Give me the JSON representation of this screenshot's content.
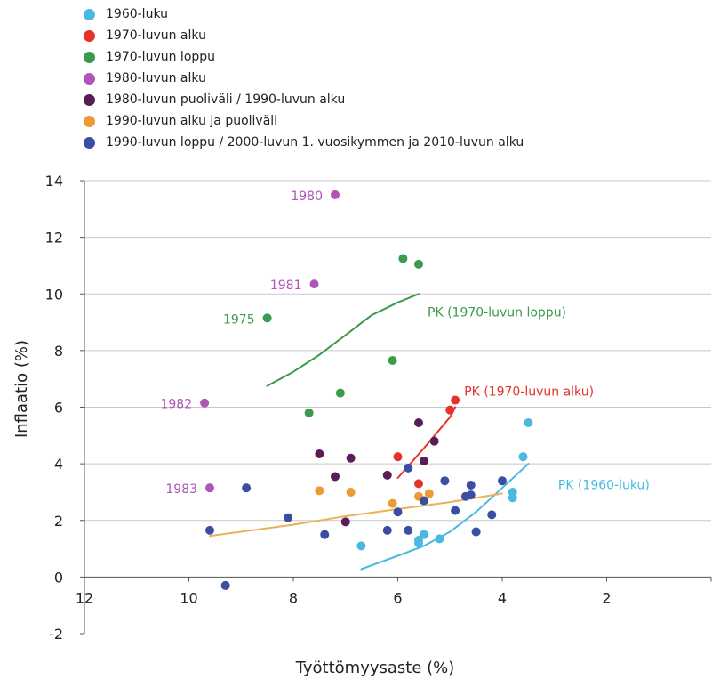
{
  "chart_data": {
    "type": "scatter",
    "xlabel": "Työttömyysaste (%)",
    "ylabel": "Inflaatio (%)",
    "xlim": [
      12,
      0
    ],
    "ylim": [
      -2,
      14
    ],
    "x_reversed": true,
    "x_ticks": [
      12,
      10,
      8,
      6,
      4,
      2
    ],
    "y_ticks": [
      -2,
      0,
      2,
      4,
      6,
      8,
      10,
      12,
      14
    ],
    "grid": "horizontal",
    "legend_position": "top-left",
    "series": [
      {
        "name": "1960-luku",
        "color": "#4bb8e2",
        "points": [
          [
            6.7,
            1.1
          ],
          [
            5.6,
            1.2
          ],
          [
            5.6,
            1.3
          ],
          [
            5.5,
            1.5
          ],
          [
            5.2,
            1.35
          ],
          [
            4.5,
            1.6
          ],
          [
            3.8,
            2.8
          ],
          [
            3.8,
            3.0
          ],
          [
            3.6,
            4.25
          ],
          [
            3.5,
            5.45
          ]
        ]
      },
      {
        "name": "1970-luvun alku",
        "color": "#e5332a",
        "points": [
          [
            6.0,
            4.25
          ],
          [
            5.6,
            3.3
          ],
          [
            5.0,
            5.9
          ],
          [
            4.9,
            6.25
          ]
        ]
      },
      {
        "name": "1970-luvun loppu",
        "color": "#3a9b4a",
        "points": [
          [
            8.5,
            9.15
          ],
          [
            7.7,
            5.8
          ],
          [
            7.1,
            6.5
          ],
          [
            6.1,
            7.65
          ],
          [
            5.9,
            11.25
          ],
          [
            5.6,
            11.05
          ]
        ]
      },
      {
        "name": "1980-luvun alku",
        "color": "#b054b8",
        "points": [
          [
            7.2,
            13.5
          ],
          [
            7.6,
            10.35
          ],
          [
            9.7,
            6.15
          ],
          [
            9.6,
            3.15
          ]
        ]
      },
      {
        "name": "1980-luvun puoliväli / 1990-luvun alku",
        "color": "#5a1e57",
        "points": [
          [
            7.5,
            4.35
          ],
          [
            7.2,
            3.55
          ],
          [
            7.0,
            1.95
          ],
          [
            6.9,
            4.2
          ],
          [
            6.2,
            3.6
          ],
          [
            5.6,
            5.45
          ],
          [
            5.5,
            4.1
          ],
          [
            5.3,
            4.8
          ]
        ]
      },
      {
        "name": "1990-luvun alku ja puoliväli",
        "color": "#ec9a34",
        "points": [
          [
            7.5,
            3.05
          ],
          [
            6.9,
            3.0
          ],
          [
            6.1,
            2.6
          ],
          [
            5.6,
            2.85
          ],
          [
            5.4,
            2.95
          ]
        ]
      },
      {
        "name": "1990-luvun loppu / 2000-luvun 1. vuosikymmen ja 2010-luvun alku",
        "color": "#3b4ea3",
        "points": [
          [
            9.6,
            1.65
          ],
          [
            9.3,
            -0.3
          ],
          [
            8.9,
            3.15
          ],
          [
            8.1,
            2.1
          ],
          [
            7.4,
            1.5
          ],
          [
            6.2,
            1.65
          ],
          [
            6.0,
            2.3
          ],
          [
            5.8,
            1.65
          ],
          [
            5.8,
            3.85
          ],
          [
            5.5,
            2.7
          ],
          [
            5.1,
            3.4
          ],
          [
            4.9,
            2.35
          ],
          [
            4.7,
            2.85
          ],
          [
            4.6,
            2.9
          ],
          [
            4.6,
            3.25
          ],
          [
            4.5,
            1.6
          ],
          [
            4.2,
            2.2
          ],
          [
            4.0,
            3.4
          ]
        ]
      }
    ],
    "curves": [
      {
        "name": "PK (1970-luvun loppu)",
        "color": "#3a9b4a",
        "points": [
          [
            8.5,
            6.75
          ],
          [
            8.0,
            7.25
          ],
          [
            7.5,
            7.85
          ],
          [
            7.0,
            8.55
          ],
          [
            6.5,
            9.25
          ],
          [
            6.0,
            9.7
          ],
          [
            5.6,
            10.0
          ]
        ]
      },
      {
        "name": "PK (1970-luvun alku)",
        "color": "#e5332a",
        "points": [
          [
            6.0,
            3.5
          ],
          [
            5.5,
            4.55
          ],
          [
            5.0,
            5.65
          ],
          [
            4.9,
            6.0
          ]
        ]
      },
      {
        "name": "PK (1960-luku)",
        "color": "#4bb8e2",
        "points": [
          [
            6.7,
            0.28
          ],
          [
            6.0,
            0.75
          ],
          [
            5.5,
            1.1
          ],
          [
            5.0,
            1.6
          ],
          [
            4.5,
            2.3
          ],
          [
            4.0,
            3.15
          ],
          [
            3.5,
            4.0
          ]
        ]
      },
      {
        "name": "",
        "color": "#e8b356",
        "points": [
          [
            9.6,
            1.45
          ],
          [
            9.0,
            1.6
          ],
          [
            8.0,
            1.85
          ],
          [
            7.0,
            2.15
          ],
          [
            6.0,
            2.4
          ],
          [
            5.0,
            2.65
          ],
          [
            4.0,
            2.95
          ]
        ]
      }
    ],
    "annotations": [
      {
        "text": "1980",
        "x": 7.2,
        "y": 13.5,
        "color": "#b054b8"
      },
      {
        "text": "1981",
        "x": 7.6,
        "y": 10.35,
        "color": "#b054b8"
      },
      {
        "text": "1975",
        "x": 8.5,
        "y": 9.15,
        "color": "#3a9b4a"
      },
      {
        "text": "1982",
        "x": 9.7,
        "y": 6.15,
        "color": "#b054b8"
      },
      {
        "text": "1983",
        "x": 9.6,
        "y": 3.15,
        "color": "#b054b8"
      },
      {
        "text": "PK (1970-luvun loppu)",
        "x": 5.6,
        "y": 9.4,
        "color": "#3a9b4a"
      },
      {
        "text": "PK (1970-luvun alku)",
        "x": 4.9,
        "y": 6.6,
        "color": "#e5332a"
      },
      {
        "text": "PK (1960-luku)",
        "x": 3.1,
        "y": 3.3,
        "color": "#4bb8e2"
      }
    ]
  }
}
